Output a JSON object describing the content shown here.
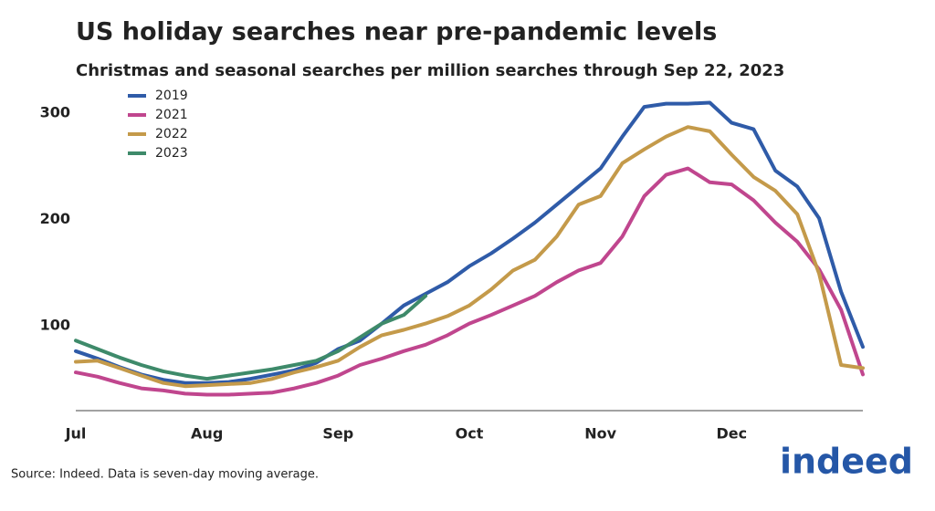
{
  "chart_data": {
    "type": "line",
    "title": "US holiday searches near pre-pandemic levels",
    "subtitle": "Christmas and seasonal searches per million searches through Sep 22, 2023",
    "source": "Source: Indeed. Data is seven-day moving average.",
    "logo": "indeed",
    "categories": [
      "Jul",
      null,
      null,
      null,
      null,
      null,
      "Aug",
      null,
      null,
      null,
      null,
      null,
      "Sep",
      null,
      null,
      null,
      null,
      null,
      "Oct",
      null,
      null,
      null,
      null,
      null,
      "Nov",
      null,
      null,
      null,
      null,
      null,
      "Dec",
      null,
      null,
      null,
      null,
      null,
      null
    ],
    "ylim": [
      20,
      325
    ],
    "yticks": [
      100,
      200,
      300
    ],
    "grid": false,
    "series": [
      {
        "name": "2019",
        "color": "#2f5ba8",
        "values": [
          76,
          69,
          61,
          54,
          49,
          46,
          46,
          47,
          50,
          54,
          58,
          65,
          78,
          86,
          102,
          119,
          130,
          141,
          156,
          168,
          182,
          197,
          214,
          231,
          248,
          278,
          306,
          309,
          309,
          310,
          291,
          285,
          246,
          231,
          201,
          132,
          80
        ]
      },
      {
        "name": "2021",
        "color": "#c0468e",
        "values": [
          56,
          52,
          46,
          41,
          39,
          36,
          35,
          35,
          36,
          37,
          41,
          46,
          53,
          63,
          69,
          76,
          82,
          91,
          102,
          110,
          119,
          128,
          141,
          152,
          159,
          184,
          222,
          242,
          248,
          235,
          233,
          218,
          197,
          179,
          153,
          115,
          54
        ]
      },
      {
        "name": "2022",
        "color": "#c49a4a",
        "values": [
          66,
          67,
          60,
          53,
          46,
          43,
          44,
          45,
          46,
          50,
          56,
          61,
          67,
          80,
          91,
          96,
          102,
          109,
          119,
          134,
          152,
          162,
          184,
          214,
          222,
          253,
          266,
          278,
          287,
          283,
          261,
          240,
          227,
          205,
          149,
          63,
          60
        ]
      },
      {
        "name": "2023",
        "color": "#3e8a6a",
        "values": [
          86,
          78,
          70,
          63,
          57,
          53,
          50,
          53,
          56,
          59,
          63,
          67,
          76,
          89,
          102,
          110,
          128,
          null,
          null,
          null,
          null,
          null,
          null,
          null,
          null,
          null,
          null,
          null,
          null,
          null,
          null,
          null,
          null,
          null,
          null,
          null,
          null
        ]
      }
    ]
  }
}
